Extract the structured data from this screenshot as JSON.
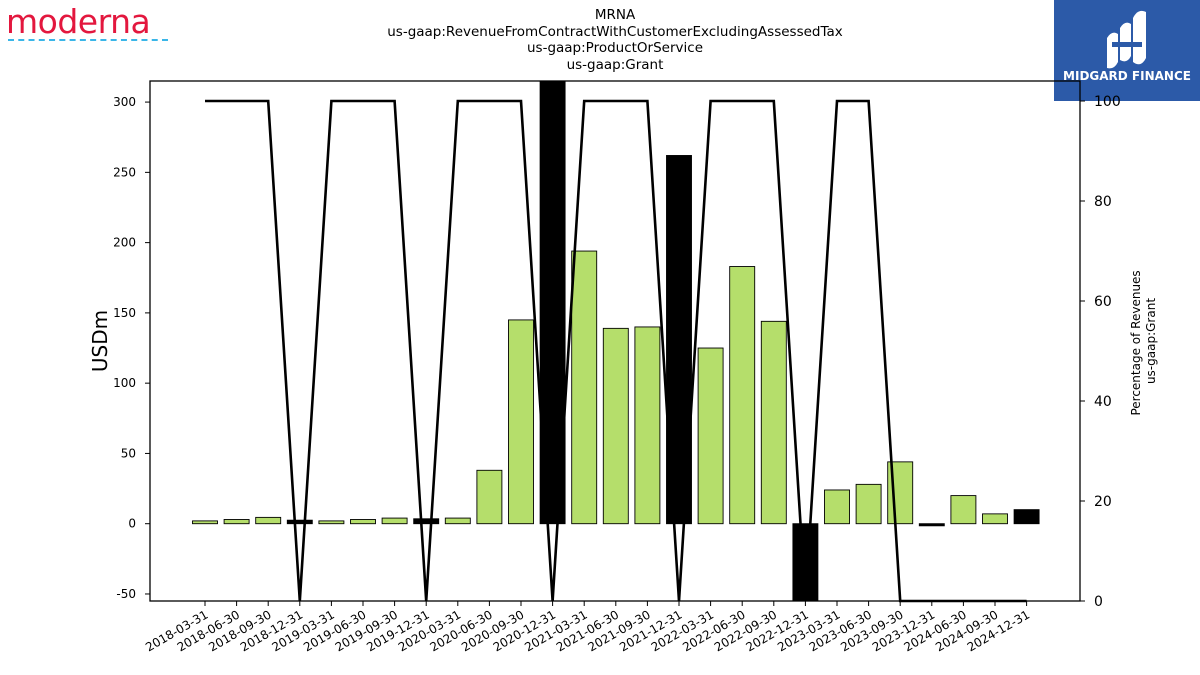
{
  "header": {
    "company_logo": "moderna",
    "brand": "MIDGARD FINANCE"
  },
  "chart_data": {
    "type": "bar",
    "title_lines": [
      "MRNA",
      "us-gaap:RevenueFromContractWithCustomerExcludingAssessedTax",
      "us-gaap:ProductOrService",
      "us-gaap:Grant"
    ],
    "ylabel": "USDm",
    "y2label_lines": [
      "Percentage of Revenues",
      "us-gaap:Grant"
    ],
    "ylim": [
      -55,
      315
    ],
    "y2lim": [
      0,
      100
    ],
    "yticks": [
      -50,
      0,
      50,
      100,
      150,
      200,
      250,
      300
    ],
    "y2ticks": [
      0,
      20,
      40,
      60,
      80,
      100
    ],
    "categories": [
      "2018-03-31",
      "2018-06-30",
      "2018-09-30",
      "2018-12-31",
      "2019-03-31",
      "2019-06-30",
      "2019-09-30",
      "2019-12-31",
      "2020-03-31",
      "2020-06-30",
      "2020-09-30",
      "2020-12-31",
      "2021-03-31",
      "2021-06-30",
      "2021-09-30",
      "2021-12-31",
      "2022-03-31",
      "2022-06-30",
      "2022-09-30",
      "2022-12-31",
      "2023-03-31",
      "2023-06-30",
      "2023-09-30",
      "2023-12-31",
      "2024-06-30",
      "2024-09-30",
      "2024-12-31"
    ],
    "series": [
      {
        "kind": "bar",
        "values": [
          2,
          3,
          4.5,
          2.5,
          2,
          3,
          4,
          3.5,
          4,
          38,
          145,
          315,
          194,
          139,
          140,
          262,
          125,
          183,
          144,
          -55,
          24,
          28,
          44,
          -1.5,
          20,
          7,
          10
        ],
        "colors": [
          "#b5de6b",
          "#b5de6b",
          "#b5de6b",
          "#000000",
          "#b5de6b",
          "#b5de6b",
          "#b5de6b",
          "#000000",
          "#b5de6b",
          "#b5de6b",
          "#b5de6b",
          "#000000",
          "#b5de6b",
          "#b5de6b",
          "#b5de6b",
          "#000000",
          "#b5de6b",
          "#b5de6b",
          "#b5de6b",
          "#000000",
          "#b5de6b",
          "#b5de6b",
          "#b5de6b",
          "#000000",
          "#b5de6b",
          "#b5de6b",
          "#000000"
        ]
      },
      {
        "kind": "line",
        "axis": "right",
        "values": [
          100,
          100,
          100,
          0,
          100,
          100,
          100,
          0,
          100,
          100,
          100,
          0,
          100,
          100,
          100,
          0,
          100,
          100,
          100,
          0,
          100,
          100,
          0,
          0,
          0,
          0,
          0
        ]
      }
    ],
    "colors": {
      "bar": "#b5de6b",
      "highlight_bar": "#000000",
      "line": "#000000",
      "logo": "#e3173e",
      "brand_bg": "#2c5aa8"
    },
    "grid": false
  }
}
